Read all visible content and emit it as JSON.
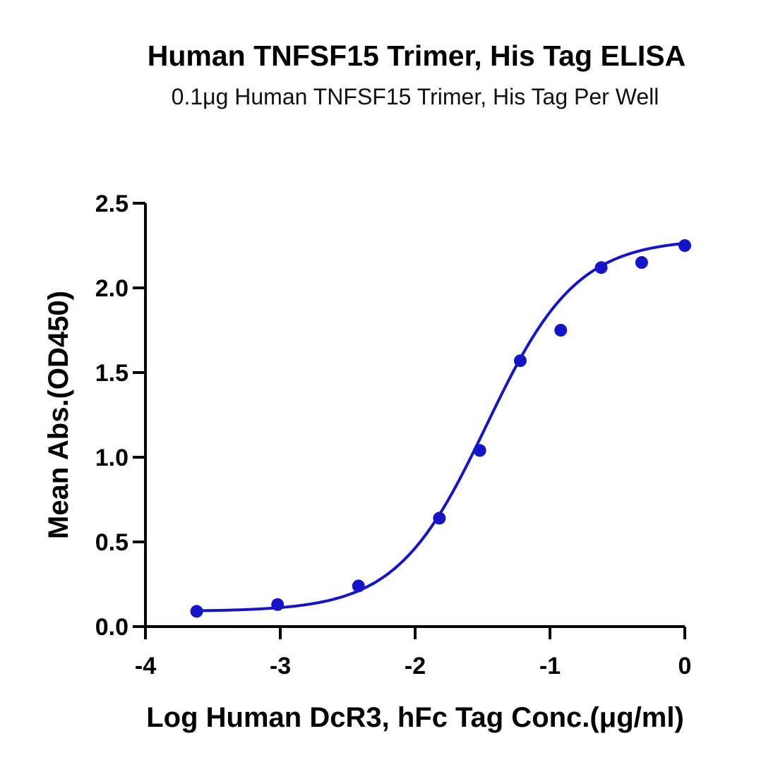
{
  "chart_data": {
    "type": "scatter",
    "title": "Human TNFSF15 Trimer, His Tag ELISA",
    "subtitle": "0.1μg Human TNFSF15 Trimer, His Tag Per Well",
    "xlabel": "Log Human DcR3, hFc Tag Conc.(μg/ml)",
    "ylabel": "Mean Abs.(OD450)",
    "xlim": [
      -4,
      0
    ],
    "ylim": [
      0,
      2.5
    ],
    "x_ticks": [
      -4,
      -3,
      -2,
      -1,
      0
    ],
    "x_tick_labels": [
      "-4",
      "-3",
      "-2",
      "-1",
      "0"
    ],
    "y_ticks": [
      0,
      0.5,
      1.0,
      1.5,
      2.0,
      2.5
    ],
    "y_tick_labels": [
      "0.0",
      "0.5",
      "1.0",
      "1.5",
      "2.0",
      "2.5"
    ],
    "grid": false,
    "series": [
      {
        "x": [
          -3.62,
          -3.02,
          -2.42,
          -1.82,
          -1.52,
          -1.22,
          -0.92,
          -0.62,
          -0.32,
          0.0
        ],
        "y": [
          0.09,
          0.13,
          0.24,
          0.64,
          1.04,
          1.57,
          1.75,
          2.12,
          2.15,
          2.25
        ],
        "color": "#1414c8",
        "fit": {
          "model": "4PL",
          "bottom": 0.09,
          "top": 2.29,
          "log_ec50": -1.47,
          "hill": 1.3
        }
      }
    ]
  }
}
